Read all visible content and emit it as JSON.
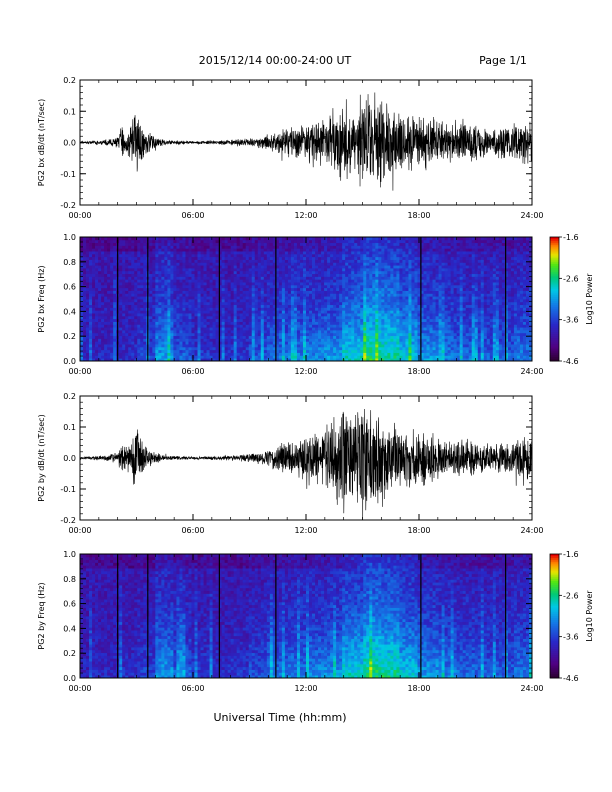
{
  "header": {
    "title": "2015/12/14  00:00-24:00 UT",
    "page": "Page 1/1"
  },
  "footer": {
    "xlabel": "Universal Time (hh:mm)"
  },
  "chart_data": [
    {
      "type": "line",
      "ylabel": "PG2 bx dB/dt (nT/sec)",
      "xlim": [
        0,
        24
      ],
      "ylim": [
        -0.2,
        0.2
      ],
      "yticks": [
        "-0.2",
        "-0.1",
        "0.0",
        "0.1",
        "0.2"
      ],
      "xticks": [
        "00:00",
        "06:00",
        "12:00",
        "18:00",
        "24:00"
      ],
      "envelope": {
        "hour": [
          0,
          0.5,
          1,
          1.5,
          2,
          2.2,
          2.5,
          2.8,
          3,
          3.2,
          3.5,
          4,
          4.5,
          5,
          6,
          7,
          8,
          9,
          10,
          10.5,
          11,
          11.5,
          12,
          12.5,
          13,
          13.5,
          14,
          14.5,
          15,
          15.5,
          16,
          16.5,
          17,
          17.5,
          18,
          18.5,
          19,
          19.5,
          20,
          20.5,
          21,
          21.5,
          22,
          22.5,
          23,
          23.5,
          24
        ],
        "amplitude": [
          0.005,
          0.006,
          0.008,
          0.012,
          0.02,
          0.06,
          0.04,
          0.09,
          0.14,
          0.09,
          0.04,
          0.02,
          0.01,
          0.008,
          0.006,
          0.007,
          0.01,
          0.015,
          0.025,
          0.04,
          0.05,
          0.06,
          0.07,
          0.08,
          0.09,
          0.12,
          0.15,
          0.13,
          0.2,
          0.14,
          0.17,
          0.12,
          0.11,
          0.1,
          0.09,
          0.1,
          0.08,
          0.07,
          0.06,
          0.07,
          0.06,
          0.05,
          0.05,
          0.06,
          0.07,
          0.08,
          0.08
        ]
      }
    },
    {
      "type": "heatmap",
      "ylabel": "PG2 bx Freq (Hz)",
      "xlim": [
        0,
        24
      ],
      "ylim": [
        0.0,
        1.0
      ],
      "yticks": [
        "0.0",
        "0.2",
        "0.4",
        "0.6",
        "0.8",
        "1.0"
      ],
      "xticks": [
        "00:00",
        "06:00",
        "12:00",
        "18:00",
        "24:00"
      ],
      "colorbar": {
        "label": "Log10 Power",
        "ticks": [
          "-1.6",
          "-2.6",
          "-3.6",
          "-4.6"
        ],
        "range": [
          -4.6,
          -1.6
        ]
      },
      "activity": [
        0.1,
        0.12,
        0.15,
        0.25,
        0.55,
        0.35,
        0.2,
        0.15,
        0.18,
        0.3,
        0.4,
        0.45,
        0.5,
        0.55,
        0.75,
        0.9,
        0.85,
        0.7,
        0.55,
        0.45,
        0.4,
        0.35,
        0.35,
        0.45
      ]
    },
    {
      "type": "line",
      "ylabel": "PG2 by dB/dt (nT/sec)",
      "xlim": [
        0,
        24
      ],
      "ylim": [
        -0.2,
        0.2
      ],
      "yticks": [
        "-0.2",
        "-0.1",
        "0.0",
        "0.1",
        "0.2"
      ],
      "xticks": [
        "00:00",
        "06:00",
        "12:00",
        "18:00",
        "24:00"
      ],
      "envelope": {
        "hour": [
          0,
          0.5,
          1,
          1.5,
          2,
          2.2,
          2.5,
          2.8,
          3,
          3.2,
          3.5,
          4,
          4.5,
          5,
          6,
          7,
          8,
          9,
          10,
          10.5,
          11,
          11.5,
          12,
          12.5,
          13,
          13.5,
          14,
          14.5,
          15,
          15.5,
          16,
          16.5,
          17,
          17.5,
          18,
          18.5,
          19,
          19.5,
          20,
          20.5,
          21,
          21.5,
          22,
          22.5,
          23,
          23.5,
          24
        ],
        "amplitude": [
          0.005,
          0.006,
          0.008,
          0.012,
          0.02,
          0.05,
          0.04,
          0.09,
          0.13,
          0.09,
          0.04,
          0.02,
          0.01,
          0.008,
          0.006,
          0.007,
          0.01,
          0.015,
          0.03,
          0.05,
          0.06,
          0.07,
          0.08,
          0.09,
          0.11,
          0.14,
          0.2,
          0.15,
          0.2,
          0.16,
          0.18,
          0.12,
          0.11,
          0.1,
          0.1,
          0.09,
          0.08,
          0.07,
          0.06,
          0.07,
          0.06,
          0.05,
          0.05,
          0.06,
          0.07,
          0.08,
          0.08
        ]
      }
    },
    {
      "type": "heatmap",
      "ylabel": "PG2 by Freq (Hz)",
      "xlim": [
        0,
        24
      ],
      "ylim": [
        0.0,
        1.0
      ],
      "yticks": [
        "0.0",
        "0.2",
        "0.4",
        "0.6",
        "0.8",
        "1.0"
      ],
      "xticks": [
        "00:00",
        "06:00",
        "12:00",
        "18:00",
        "24:00"
      ],
      "colorbar": {
        "label": "Log10 Power",
        "ticks": [
          "-1.6",
          "-2.6",
          "-3.6",
          "-4.6"
        ],
        "range": [
          -4.6,
          -1.6
        ]
      },
      "activity": [
        0.1,
        0.12,
        0.15,
        0.25,
        0.55,
        0.35,
        0.2,
        0.15,
        0.18,
        0.3,
        0.4,
        0.45,
        0.5,
        0.55,
        0.75,
        0.9,
        0.85,
        0.7,
        0.55,
        0.45,
        0.4,
        0.35,
        0.35,
        0.45
      ]
    }
  ]
}
